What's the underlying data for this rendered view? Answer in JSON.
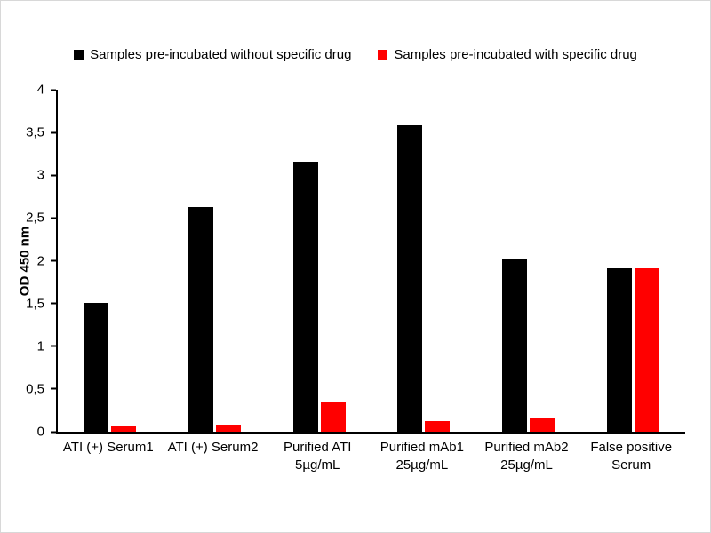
{
  "chart_data": {
    "type": "bar",
    "title": "",
    "xlabel": "",
    "ylabel": "OD 450 nm",
    "ylim": [
      0,
      4
    ],
    "ytick_values": [
      0,
      0.5,
      1,
      1.5,
      2,
      2.5,
      3,
      3.5,
      4
    ],
    "ytick_labels": [
      "0",
      "0,5",
      "1",
      "1,5",
      "2",
      "2,5",
      "3",
      "3,5",
      "4"
    ],
    "grid": "off",
    "legend_position": "top",
    "categories": [
      "ATI (+) Serum1",
      "ATI (+) Serum2",
      "Purified ATI\n5µg/mL",
      "Purified mAb1\n25µg/mL",
      "Purified mAb2\n25µg/mL",
      "False positive\nSerum"
    ],
    "series": [
      {
        "name": "Samples pre-incubated without specific drug",
        "key": "without-drug",
        "color": "#000000",
        "values": [
          1.51,
          2.63,
          3.16,
          3.58,
          2.02,
          1.91
        ]
      },
      {
        "name": "Samples pre-incubated with specific drug",
        "key": "with-drug",
        "color": "#ff0000",
        "values": [
          0.06,
          0.08,
          0.35,
          0.13,
          0.17,
          1.91
        ]
      }
    ]
  }
}
